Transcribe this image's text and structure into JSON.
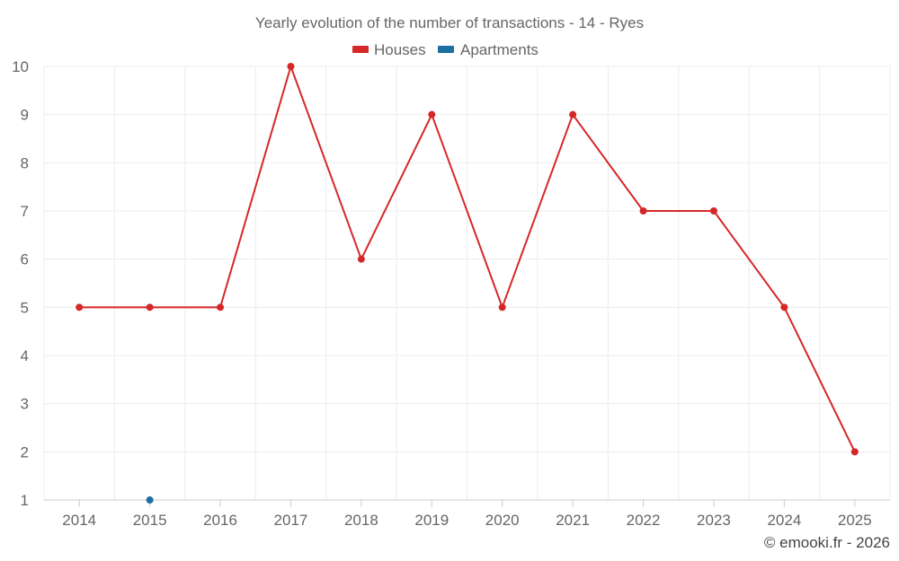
{
  "chart_data": {
    "type": "line",
    "title": "Yearly evolution of the number of transactions - 14 - Ryes",
    "categories": [
      "2014",
      "2015",
      "2016",
      "2017",
      "2018",
      "2019",
      "2020",
      "2021",
      "2022",
      "2023",
      "2024",
      "2025"
    ],
    "series": [
      {
        "name": "Houses",
        "color": "#d62728",
        "values": [
          5,
          5,
          5,
          10,
          6,
          9,
          5,
          9,
          7,
          7,
          5,
          2
        ]
      },
      {
        "name": "Apartments",
        "color": "#1f6ea0",
        "values": [
          null,
          1,
          null,
          null,
          null,
          null,
          null,
          null,
          null,
          null,
          null,
          null
        ]
      }
    ],
    "ylim": [
      1,
      10
    ],
    "yticks": [
      "1",
      "2",
      "3",
      "4",
      "5",
      "6",
      "7",
      "8",
      "9",
      "10"
    ],
    "grid": true,
    "legend_position": "top-center"
  },
  "credit": "© emooki.fr - 2026"
}
